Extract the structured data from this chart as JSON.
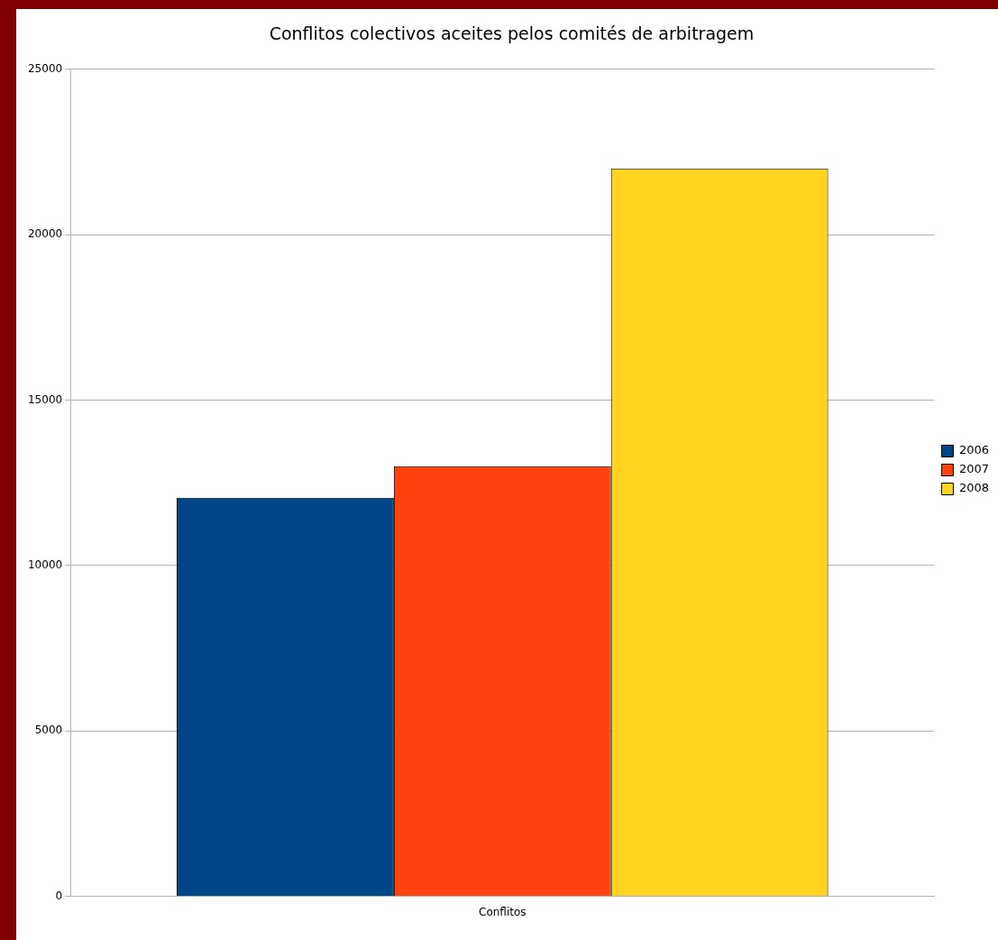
{
  "chart_data": {
    "type": "bar",
    "title": "Conflitos colectivos aceites pelos comités de arbitragem",
    "categories": [
      "Conflitos"
    ],
    "series": [
      {
        "name": "2006",
        "color": "#004586",
        "values": [
          12050
        ]
      },
      {
        "name": "2007",
        "color": "#ff420e",
        "values": [
          13000
        ]
      },
      {
        "name": "2008",
        "color": "#ffd320",
        "values": [
          22000
        ]
      }
    ],
    "ylim": [
      0,
      25000
    ],
    "yticks": [
      0,
      5000,
      10000,
      15000,
      20000,
      25000
    ],
    "grid": "y",
    "legend": "right"
  }
}
